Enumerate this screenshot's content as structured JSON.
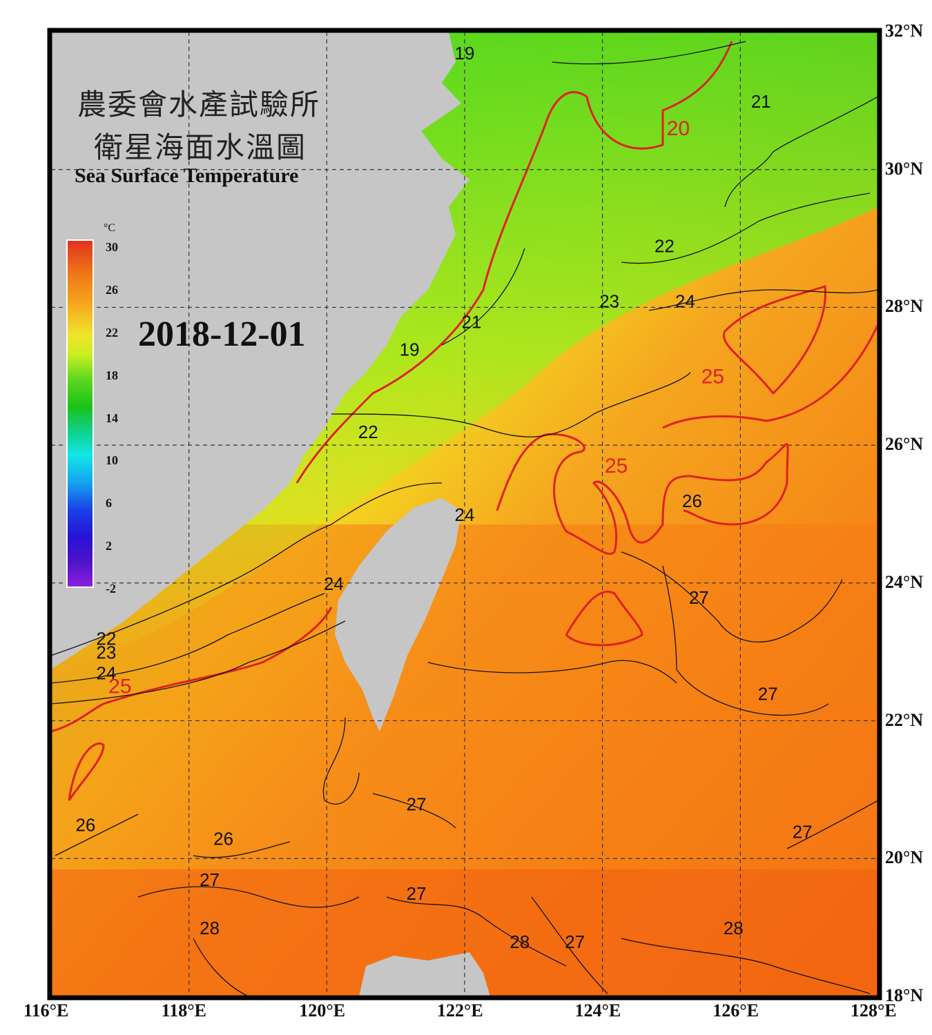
{
  "title": {
    "line1": "農委會水產試驗所",
    "line2": "衛星海面水溫圖",
    "english": "Sea Surface Temperature"
  },
  "date": "2018-12-01",
  "colorbar": {
    "unit": "°C",
    "ticks": [
      "30",
      "26",
      "22",
      "18",
      "14",
      "10",
      "6",
      "2",
      "-2"
    ],
    "range_c": [
      -2,
      30
    ]
  },
  "axes": {
    "lon_labels": [
      "116°E",
      "118°E",
      "120°E",
      "122°E",
      "124°E",
      "126°E",
      "128°E"
    ],
    "lat_labels": [
      "32°N",
      "30°N",
      "28°N",
      "26°N",
      "24°N",
      "22°N",
      "20°N",
      "18°N"
    ],
    "lon_range": [
      116,
      128
    ],
    "lat_range": [
      18,
      32
    ]
  },
  "contour_labels": [
    {
      "text": "19",
      "lon": 122.0,
      "lat": 31.6,
      "color": "black"
    },
    {
      "text": "21",
      "lon": 126.3,
      "lat": 30.9,
      "color": "black"
    },
    {
      "text": "20",
      "lon": 125.1,
      "lat": 30.5,
      "color": "red"
    },
    {
      "text": "22",
      "lon": 124.9,
      "lat": 28.8,
      "color": "black"
    },
    {
      "text": "23",
      "lon": 124.1,
      "lat": 28.0,
      "color": "black"
    },
    {
      "text": "24",
      "lon": 125.2,
      "lat": 28.0,
      "color": "black"
    },
    {
      "text": "21",
      "lon": 122.1,
      "lat": 27.7,
      "color": "black"
    },
    {
      "text": "19",
      "lon": 121.2,
      "lat": 27.3,
      "color": "black"
    },
    {
      "text": "25",
      "lon": 125.6,
      "lat": 26.9,
      "color": "red"
    },
    {
      "text": "22",
      "lon": 120.6,
      "lat": 26.1,
      "color": "black"
    },
    {
      "text": "25",
      "lon": 124.2,
      "lat": 25.6,
      "color": "red"
    },
    {
      "text": "26",
      "lon": 125.3,
      "lat": 25.1,
      "color": "black"
    },
    {
      "text": "24",
      "lon": 122.0,
      "lat": 24.9,
      "color": "black"
    },
    {
      "text": "24",
      "lon": 120.1,
      "lat": 23.9,
      "color": "black"
    },
    {
      "text": "27",
      "lon": 125.4,
      "lat": 23.7,
      "color": "black"
    },
    {
      "text": "22",
      "lon": 116.8,
      "lat": 23.1,
      "color": "black"
    },
    {
      "text": "23",
      "lon": 116.8,
      "lat": 22.9,
      "color": "black"
    },
    {
      "text": "24",
      "lon": 116.8,
      "lat": 22.6,
      "color": "black"
    },
    {
      "text": "25",
      "lon": 117.0,
      "lat": 22.4,
      "color": "red"
    },
    {
      "text": "27",
      "lon": 126.4,
      "lat": 22.3,
      "color": "black"
    },
    {
      "text": "27",
      "lon": 121.3,
      "lat": 20.7,
      "color": "black"
    },
    {
      "text": "26",
      "lon": 116.5,
      "lat": 20.4,
      "color": "black"
    },
    {
      "text": "26",
      "lon": 118.5,
      "lat": 20.2,
      "color": "black"
    },
    {
      "text": "27",
      "lon": 126.9,
      "lat": 20.3,
      "color": "black"
    },
    {
      "text": "27",
      "lon": 118.3,
      "lat": 19.6,
      "color": "black"
    },
    {
      "text": "27",
      "lon": 121.3,
      "lat": 19.4,
      "color": "black"
    },
    {
      "text": "28",
      "lon": 118.3,
      "lat": 18.9,
      "color": "black"
    },
    {
      "text": "28",
      "lon": 122.8,
      "lat": 18.7,
      "color": "black"
    },
    {
      "text": "27",
      "lon": 123.6,
      "lat": 18.7,
      "color": "black"
    },
    {
      "text": "28",
      "lon": 125.9,
      "lat": 18.9,
      "color": "black"
    }
  ],
  "colors": {
    "land": "#c6c6c6",
    "frame": "#000000",
    "grid": "#333333",
    "contour_black": "#111111",
    "contour_red": "#e0201c"
  }
}
